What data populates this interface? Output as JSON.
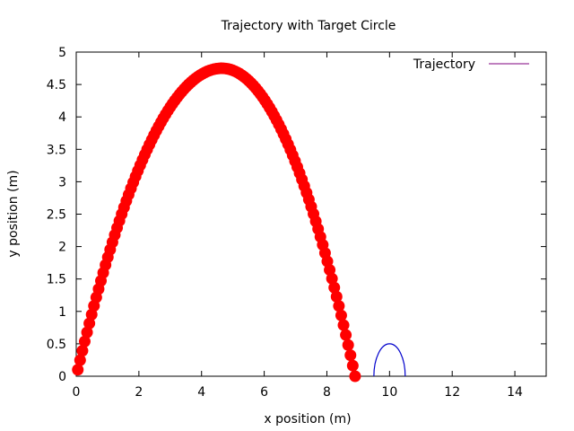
{
  "chart_data": {
    "type": "scatter",
    "title": "Trajectory with Target Circle",
    "xlabel": "x position (m)",
    "ylabel": "y position (m)",
    "xlim": [
      0,
      15
    ],
    "ylim": [
      0,
      5
    ],
    "xticks": [
      0,
      2,
      4,
      6,
      8,
      10,
      12,
      14
    ],
    "yticks": [
      0,
      0.5,
      1,
      1.5,
      2,
      2.5,
      3,
      3.5,
      4,
      4.5,
      5
    ],
    "ytick_labels": [
      "0",
      "0.5",
      "1",
      "1.5",
      "2",
      "2.5",
      "3",
      "3.5",
      "4",
      "4.5",
      "5"
    ],
    "grid": false,
    "legend_position": "top-right",
    "series": [
      {
        "name": "Trajectory",
        "color": "#ff0000",
        "legend_line_color": "#7f007f",
        "start": [
          0.05,
          0.1
        ],
        "apex": [
          4.65,
          4.75
        ],
        "end": [
          8.9,
          0.0
        ],
        "samples": 120
      }
    ],
    "target_circle": {
      "center": [
        10.0,
        0.0
      ],
      "radius": 0.5,
      "color": "#0000cc"
    }
  }
}
